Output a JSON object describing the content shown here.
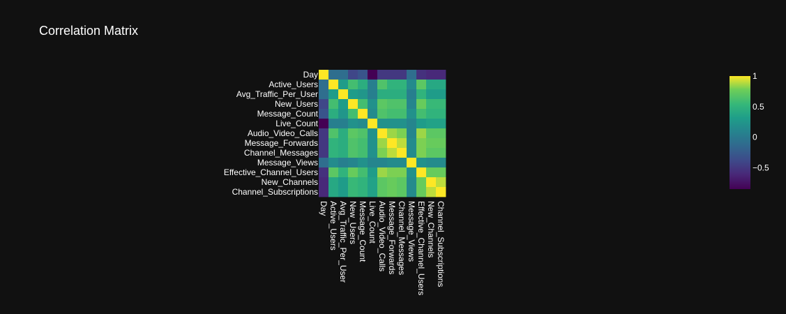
{
  "chart_data": {
    "type": "heatmap",
    "title": "Correlation Matrix",
    "xlabel": "",
    "ylabel": "",
    "labels": [
      "Day",
      "Active_Users",
      "Avg_Traffic_Per_User",
      "New_Users",
      "Message_Count",
      "Live_Count",
      "Audio_Video_Calls",
      "Message_Forwards",
      "Channel_Messages",
      "Message_Views",
      "Effective_Channel_Users",
      "New_Channels",
      "Channel_Subscriptions"
    ],
    "values": [
      [
        1.0,
        -0.1,
        -0.1,
        -0.4,
        -0.3,
        -0.85,
        -0.5,
        -0.5,
        -0.5,
        -0.1,
        -0.55,
        -0.6,
        -0.6
      ],
      [
        -0.1,
        1.0,
        0.3,
        0.6,
        0.45,
        0.05,
        0.65,
        0.5,
        0.5,
        0.15,
        0.7,
        0.4,
        0.4
      ],
      [
        -0.1,
        0.3,
        1.0,
        0.3,
        0.25,
        0.05,
        0.45,
        0.45,
        0.45,
        0.05,
        0.5,
        0.3,
        0.3
      ],
      [
        -0.4,
        0.6,
        0.3,
        1.0,
        0.6,
        0.2,
        0.7,
        0.65,
        0.65,
        0.1,
        0.75,
        0.55,
        0.55
      ],
      [
        -0.3,
        0.45,
        0.25,
        0.6,
        1.0,
        0.15,
        0.65,
        0.6,
        0.6,
        0.2,
        0.6,
        0.5,
        0.5
      ],
      [
        -0.85,
        0.05,
        0.05,
        0.2,
        0.15,
        1.0,
        0.2,
        0.2,
        0.2,
        0.1,
        0.3,
        0.35,
        0.35
      ],
      [
        -0.5,
        0.65,
        0.45,
        0.7,
        0.65,
        0.2,
        1.0,
        0.85,
        0.8,
        0.1,
        0.85,
        0.7,
        0.7
      ],
      [
        -0.5,
        0.5,
        0.45,
        0.65,
        0.6,
        0.2,
        0.85,
        1.0,
        0.9,
        0.15,
        0.8,
        0.75,
        0.75
      ],
      [
        -0.5,
        0.5,
        0.45,
        0.65,
        0.6,
        0.2,
        0.8,
        0.9,
        1.0,
        0.15,
        0.8,
        0.7,
        0.7
      ],
      [
        -0.1,
        0.15,
        0.05,
        0.1,
        0.2,
        0.1,
        0.1,
        0.15,
        0.15,
        1.0,
        0.2,
        0.15,
        0.15
      ],
      [
        -0.55,
        0.7,
        0.5,
        0.75,
        0.6,
        0.3,
        0.85,
        0.8,
        0.8,
        0.2,
        1.0,
        0.75,
        0.75
      ],
      [
        -0.6,
        0.4,
        0.3,
        0.55,
        0.5,
        0.35,
        0.7,
        0.75,
        0.7,
        0.15,
        0.75,
        1.0,
        0.9
      ],
      [
        -0.6,
        0.4,
        0.3,
        0.55,
        0.5,
        0.35,
        0.7,
        0.75,
        0.7,
        0.15,
        0.75,
        0.9,
        1.0
      ]
    ],
    "zrange": [
      -0.85,
      1.0
    ],
    "colorscale": "viridis",
    "colorbar_ticks": [
      {
        "value": 1,
        "label": "1"
      },
      {
        "value": 0.5,
        "label": "0.5"
      },
      {
        "value": 0,
        "label": "0"
      },
      {
        "value": -0.5,
        "label": "−0.5"
      }
    ],
    "grid": false,
    "legend": "none"
  },
  "colors": {
    "background": "#111111",
    "text": "#ffffff"
  }
}
